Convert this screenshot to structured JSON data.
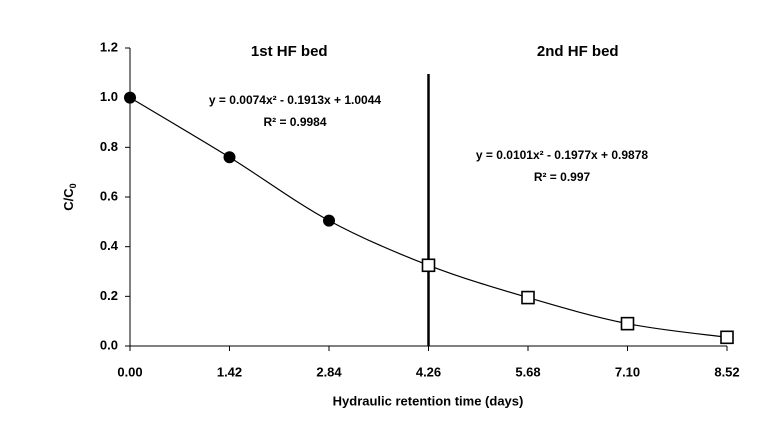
{
  "chart_data": {
    "type": "scatter",
    "x_label": "Hydraulic retention time (days)",
    "y_label": {
      "text": "C/C",
      "subscript": "0"
    },
    "xlim": [
      0,
      8.52
    ],
    "ylim": [
      0,
      1.2
    ],
    "xticks": [
      {
        "value": 0,
        "label": "0.00"
      },
      1.42,
      2.84,
      4.26,
      5.68,
      {
        "value": 7.1,
        "label": "7.10"
      },
      8.52
    ],
    "yticks": [
      {
        "value": 0,
        "label": "0.0"
      },
      0.2,
      0.4,
      0.6,
      0.8,
      {
        "value": 1,
        "label": "1.0"
      },
      1.2
    ],
    "series": [
      {
        "name": "1st HF bed",
        "marker": "circle",
        "color": "#000000",
        "x": [
          0,
          1.42,
          2.84
        ],
        "values": [
          1.0,
          0.76,
          0.505
        ]
      },
      {
        "name": "2nd HF bed",
        "marker": "square",
        "color": "#000000",
        "x": [
          4.26,
          5.68,
          7.1,
          8.52
        ],
        "values": [
          0.325,
          0.195,
          0.09,
          0.035
        ]
      }
    ],
    "divider_x": 4.26,
    "annotations": [
      {
        "equation": "y = 0.0074x² - 0.1913x + 1.0044",
        "r2": "R² = 0.9984"
      },
      {
        "equation": "y = 0.0101x² - 0.1977x + 0.9878",
        "r2": "R² = 0.997"
      }
    ]
  }
}
